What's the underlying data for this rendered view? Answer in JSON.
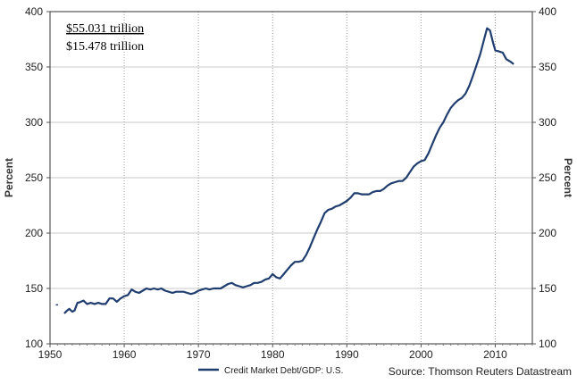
{
  "chart_data": {
    "type": "line",
    "title": "",
    "xlabel": "",
    "ylabel": "Percent",
    "ylabel_right": "Percent",
    "xlim": [
      1950,
      2015
    ],
    "ylim": [
      100,
      400
    ],
    "x_ticks": [
      "1950",
      "1960",
      "1970",
      "1980",
      "1990",
      "2000",
      "2010"
    ],
    "y_ticks": [
      "100",
      "150",
      "200",
      "250",
      "300",
      "350",
      "400"
    ],
    "grid": {
      "vertical": "dotted",
      "horizontal": "solid"
    },
    "annotations": [
      "$55.031 trillion",
      "$15.478 trillion"
    ],
    "source": "Source: Thomson Reuters Datastream",
    "legend_position": "bottom-center",
    "series": [
      {
        "name": "Credit Market Debt/GDP: U.S.",
        "color": "#1f3d6e",
        "points": [
          [
            1950.9,
            135.2
          ],
          [
            1952.0,
            128.0
          ],
          [
            1952.3,
            130.0
          ],
          [
            1952.6,
            131.5
          ],
          [
            1953.0,
            129.0
          ],
          [
            1953.3,
            130.0
          ],
          [
            1953.7,
            137.0
          ],
          [
            1954.0,
            137.5
          ],
          [
            1954.5,
            139.0
          ],
          [
            1955.0,
            136.0
          ],
          [
            1955.5,
            137.0
          ],
          [
            1956.0,
            136.0
          ],
          [
            1956.5,
            137.0
          ],
          [
            1957.0,
            136.0
          ],
          [
            1957.5,
            136.0
          ],
          [
            1958.0,
            141.0
          ],
          [
            1958.5,
            141.0
          ],
          [
            1959.0,
            138.0
          ],
          [
            1959.5,
            141.0
          ],
          [
            1960.0,
            143.0
          ],
          [
            1960.5,
            144.0
          ],
          [
            1961.0,
            149.0
          ],
          [
            1961.5,
            147.0
          ],
          [
            1962.0,
            146.0
          ],
          [
            1962.5,
            148.0
          ],
          [
            1963.0,
            150.0
          ],
          [
            1963.5,
            149.0
          ],
          [
            1964.0,
            150.0
          ],
          [
            1964.5,
            149.0
          ],
          [
            1965.0,
            150.0
          ],
          [
            1965.5,
            148.0
          ],
          [
            1966.0,
            147.0
          ],
          [
            1966.5,
            146.0
          ],
          [
            1967.0,
            147.0
          ],
          [
            1967.5,
            147.0
          ],
          [
            1968.0,
            147.0
          ],
          [
            1968.5,
            146.0
          ],
          [
            1969.0,
            145.0
          ],
          [
            1969.5,
            146.0
          ],
          [
            1970.0,
            148.0
          ],
          [
            1970.5,
            149.0
          ],
          [
            1971.0,
            150.0
          ],
          [
            1971.5,
            149.0
          ],
          [
            1972.0,
            150.0
          ],
          [
            1972.5,
            150.0
          ],
          [
            1973.0,
            150.0
          ],
          [
            1973.5,
            152.0
          ],
          [
            1974.0,
            154.0
          ],
          [
            1974.5,
            155.0
          ],
          [
            1975.0,
            153.0
          ],
          [
            1975.5,
            152.0
          ],
          [
            1976.0,
            151.0
          ],
          [
            1976.5,
            152.0
          ],
          [
            1977.0,
            153.0
          ],
          [
            1977.5,
            155.0
          ],
          [
            1978.0,
            155.0
          ],
          [
            1978.5,
            156.0
          ],
          [
            1979.0,
            158.0
          ],
          [
            1979.5,
            159.0
          ],
          [
            1980.0,
            163.0
          ],
          [
            1980.5,
            160.0
          ],
          [
            1981.0,
            159.0
          ],
          [
            1981.5,
            163.0
          ],
          [
            1982.0,
            167.0
          ],
          [
            1982.5,
            171.0
          ],
          [
            1983.0,
            174.0
          ],
          [
            1983.5,
            174.0
          ],
          [
            1984.0,
            175.0
          ],
          [
            1984.5,
            180.0
          ],
          [
            1985.0,
            187.0
          ],
          [
            1985.5,
            195.0
          ],
          [
            1986.0,
            203.0
          ],
          [
            1986.5,
            210.0
          ],
          [
            1987.0,
            218.0
          ],
          [
            1987.5,
            221.0
          ],
          [
            1988.0,
            222.0
          ],
          [
            1988.5,
            224.0
          ],
          [
            1989.0,
            225.0
          ],
          [
            1989.5,
            227.0
          ],
          [
            1990.0,
            229.0
          ],
          [
            1990.5,
            232.0
          ],
          [
            1991.0,
            236.0
          ],
          [
            1991.5,
            236.0
          ],
          [
            1992.0,
            235.0
          ],
          [
            1992.5,
            235.0
          ],
          [
            1993.0,
            235.0
          ],
          [
            1993.5,
            237.0
          ],
          [
            1994.0,
            238.0
          ],
          [
            1994.5,
            238.0
          ],
          [
            1995.0,
            240.0
          ],
          [
            1995.5,
            243.0
          ],
          [
            1996.0,
            245.0
          ],
          [
            1996.5,
            246.0
          ],
          [
            1997.0,
            247.0
          ],
          [
            1997.5,
            247.0
          ],
          [
            1998.0,
            250.0
          ],
          [
            1998.5,
            255.0
          ],
          [
            1999.0,
            260.0
          ],
          [
            1999.5,
            263.0
          ],
          [
            2000.0,
            265.0
          ],
          [
            2000.5,
            266.0
          ],
          [
            2001.0,
            272.0
          ],
          [
            2001.5,
            280.0
          ],
          [
            2002.0,
            288.0
          ],
          [
            2002.5,
            295.0
          ],
          [
            2003.0,
            300.0
          ],
          [
            2003.5,
            307.0
          ],
          [
            2004.0,
            313.0
          ],
          [
            2004.5,
            317.0
          ],
          [
            2005.0,
            320.0
          ],
          [
            2005.5,
            322.0
          ],
          [
            2006.0,
            326.0
          ],
          [
            2006.5,
            333.0
          ],
          [
            2007.0,
            342.0
          ],
          [
            2007.5,
            352.0
          ],
          [
            2008.0,
            362.0
          ],
          [
            2008.5,
            375.0
          ],
          [
            2008.9,
            385.0
          ],
          [
            2009.3,
            383.0
          ],
          [
            2009.7,
            372.0
          ],
          [
            2010.0,
            365.0
          ],
          [
            2010.5,
            364.0
          ],
          [
            2011.0,
            363.0
          ],
          [
            2011.5,
            357.0
          ],
          [
            2012.0,
            355.0
          ],
          [
            2012.4,
            353.0
          ]
        ]
      }
    ]
  }
}
